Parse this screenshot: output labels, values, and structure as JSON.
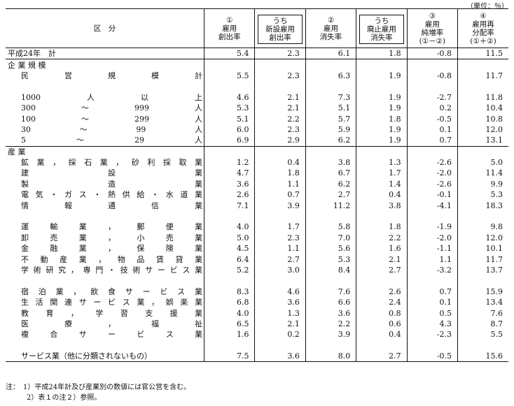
{
  "unit_label": "（単位：％）",
  "headers": {
    "category": "区　分",
    "cols": [
      {
        "mark": "①",
        "label1": "雇用",
        "label2": "創出率",
        "boxed": false
      },
      {
        "mark": "",
        "label0": "うち",
        "label1": "新設雇用",
        "label2": "創出率",
        "boxed": true
      },
      {
        "mark": "②",
        "label1": "雇用",
        "label2": "消失率",
        "boxed": false
      },
      {
        "mark": "",
        "label0": "うち",
        "label1": "廃止雇用",
        "label2": "消失率",
        "boxed": true
      },
      {
        "mark": "③",
        "label1": "雇用",
        "label2": "純増率",
        "label3": "(①－②)",
        "boxed": false
      },
      {
        "mark": "④",
        "label1": "雇用再",
        "label2": "分配率",
        "label3": "(①＋②)",
        "boxed": false
      }
    ]
  },
  "rows": [
    {
      "label": "平成24年　計",
      "style": "ind0",
      "values": [
        "5.4",
        "2.3",
        "6.1",
        "1.8",
        "-0.8",
        "11.5"
      ],
      "end": true
    },
    {
      "label": "企 業 規 模",
      "style": "ind0",
      "values": []
    },
    {
      "label": "民　　　営　　　規　　　模　　　計",
      "style": "jus",
      "parts": [
        "民",
        "営",
        "規",
        "模",
        "計"
      ],
      "values": [
        "5.5",
        "2.3",
        "6.3",
        "1.9",
        "-0.8",
        "11.7"
      ]
    },
    {
      "label": "",
      "style": "ind1",
      "values": []
    },
    {
      "label": "1000 人 以 上",
      "style": "jus",
      "parts": [
        "1000",
        "人",
        "以",
        "上"
      ],
      "values": [
        "4.6",
        "2.1",
        "7.3",
        "1.9",
        "-2.7",
        "11.8"
      ]
    },
    {
      "label": "300 ～ 999 人",
      "style": "jus",
      "parts": [
        "300",
        "～",
        "999",
        "人"
      ],
      "values": [
        "5.3",
        "2.1",
        "5.1",
        "1.9",
        "0.2",
        "10.4"
      ]
    },
    {
      "label": "100 ～ 299 人",
      "style": "jus",
      "parts": [
        "100",
        "～",
        "299",
        "人"
      ],
      "values": [
        "5.1",
        "2.2",
        "5.7",
        "1.8",
        "-0.5",
        "10.8"
      ]
    },
    {
      "label": "30 ～ 99 人",
      "style": "jus",
      "parts": [
        "30",
        "～",
        "99",
        "人"
      ],
      "values": [
        "6.0",
        "2.3",
        "5.9",
        "1.9",
        "0.1",
        "12.0"
      ]
    },
    {
      "label": "5 ～ 29 人",
      "style": "jus",
      "parts": [
        "5",
        "～",
        "29",
        "人"
      ],
      "values": [
        "6.9",
        "2.9",
        "6.2",
        "1.9",
        "0.7",
        "13.1"
      ],
      "end": true
    },
    {
      "label": "産 業",
      "style": "ind0",
      "values": []
    },
    {
      "label": "鉱業，採石業，砂利採取業",
      "style": "jus",
      "parts": [
        "鉱",
        "業",
        "，",
        "採",
        "石",
        "業",
        "，",
        "砂",
        "利",
        "採",
        "取",
        "業"
      ],
      "values": [
        "1.2",
        "0.4",
        "3.8",
        "1.3",
        "-2.6",
        "5.0"
      ]
    },
    {
      "label": "建設業",
      "style": "jus",
      "parts": [
        "建",
        "設",
        "業"
      ],
      "values": [
        "4.7",
        "1.8",
        "6.7",
        "1.7",
        "-2.0",
        "11.4"
      ]
    },
    {
      "label": "製造業",
      "style": "jus",
      "parts": [
        "製",
        "造",
        "業"
      ],
      "values": [
        "3.6",
        "1.1",
        "6.2",
        "1.4",
        "-2.6",
        "9.9"
      ]
    },
    {
      "label": "電気・ガス・熱供給・水道業",
      "style": "jus",
      "parts": [
        "電",
        "気",
        "・",
        "ガ",
        "ス",
        "・",
        "熱",
        "供",
        "給",
        "・",
        "水",
        "道",
        "業"
      ],
      "values": [
        "2.6",
        "0.7",
        "2.7",
        "0.4",
        "-0.1",
        "5.3"
      ]
    },
    {
      "label": "情報通信業",
      "style": "jus",
      "parts": [
        "情",
        "報",
        "通",
        "信",
        "業"
      ],
      "values": [
        "7.1",
        "3.9",
        "11.2",
        "3.8",
        "-4.1",
        "18.3"
      ]
    },
    {
      "label": "",
      "style": "ind1",
      "values": []
    },
    {
      "label": "運輸業，郵便業",
      "style": "jus",
      "parts": [
        "運",
        "輸",
        "業",
        "，",
        "郵",
        "便",
        "業"
      ],
      "values": [
        "4.0",
        "1.7",
        "5.8",
        "1.8",
        "-1.9",
        "9.8"
      ]
    },
    {
      "label": "卸売業，小売業",
      "style": "jus",
      "parts": [
        "卸",
        "売",
        "業",
        "，",
        "小",
        "売",
        "業"
      ],
      "values": [
        "5.0",
        "2.3",
        "7.0",
        "2.2",
        "-2.0",
        "12.0"
      ]
    },
    {
      "label": "金融業，保険業",
      "style": "jus",
      "parts": [
        "金",
        "融",
        "業",
        "，",
        "保",
        "険",
        "業"
      ],
      "values": [
        "4.5",
        "1.1",
        "5.6",
        "1.6",
        "-1.1",
        "10.1"
      ]
    },
    {
      "label": "不動産業，物品賃貸業",
      "style": "jus",
      "parts": [
        "不",
        "動",
        "産",
        "業",
        "，",
        "物",
        "品",
        "賃",
        "貸",
        "業"
      ],
      "values": [
        "6.4",
        "2.7",
        "5.3",
        "2.1",
        "1.1",
        "11.7"
      ]
    },
    {
      "label": "学術研究，専門・技術サービス業",
      "style": "jus",
      "parts": [
        "学",
        "術",
        "研",
        "究",
        "，",
        "専",
        "門",
        "・",
        "技",
        "術",
        "サ",
        "ー",
        "ビ",
        "ス",
        "業"
      ],
      "values": [
        "5.2",
        "3.0",
        "8.4",
        "2.7",
        "-3.2",
        "13.7"
      ]
    },
    {
      "label": "",
      "style": "ind1",
      "values": []
    },
    {
      "label": "宿泊業，飲食サービス業",
      "style": "jus",
      "parts": [
        "宿",
        "泊",
        "業",
        "，",
        "飲",
        "食",
        "サ",
        "ー",
        "ビ",
        "ス",
        "業"
      ],
      "values": [
        "8.3",
        "4.6",
        "7.6",
        "2.6",
        "0.7",
        "15.9"
      ]
    },
    {
      "label": "生活関連サービス業，娯楽業",
      "style": "jus",
      "parts": [
        "生",
        "活",
        "関",
        "連",
        "サ",
        "ー",
        "ビ",
        "ス",
        "業",
        "，",
        "娯",
        "楽",
        "業"
      ],
      "values": [
        "6.8",
        "3.6",
        "6.6",
        "2.4",
        "0.1",
        "13.4"
      ]
    },
    {
      "label": "教育，学習支援業",
      "style": "jus",
      "parts": [
        "教",
        "育",
        "，",
        "学",
        "習",
        "支",
        "援",
        "業"
      ],
      "values": [
        "4.0",
        "1.3",
        "3.6",
        "0.8",
        "0.5",
        "7.6"
      ]
    },
    {
      "label": "医療，福祉",
      "style": "jus",
      "parts": [
        "医",
        "療",
        "，",
        "福",
        "祉"
      ],
      "values": [
        "6.5",
        "2.1",
        "2.2",
        "0.6",
        "4.3",
        "8.7"
      ]
    },
    {
      "label": "複合サービス業",
      "style": "jus",
      "parts": [
        "複",
        "合",
        "サ",
        "ー",
        "ビ",
        "ス",
        "業"
      ],
      "values": [
        "1.6",
        "0.2",
        "3.9",
        "0.4",
        "-2.3",
        "5.5"
      ]
    },
    {
      "label": "",
      "style": "ind1",
      "values": []
    },
    {
      "label": "サービス業（他に分類されないもの）",
      "style": "ind1",
      "values": [
        "7.5",
        "3.6",
        "8.0",
        "2.7",
        "-0.5",
        "15.6"
      ],
      "last": true
    }
  ],
  "notes": [
    "注：　1）平成24年計及び産業別の数値には官公営を含む。",
    "　　　2）表１の注２）参照。"
  ]
}
